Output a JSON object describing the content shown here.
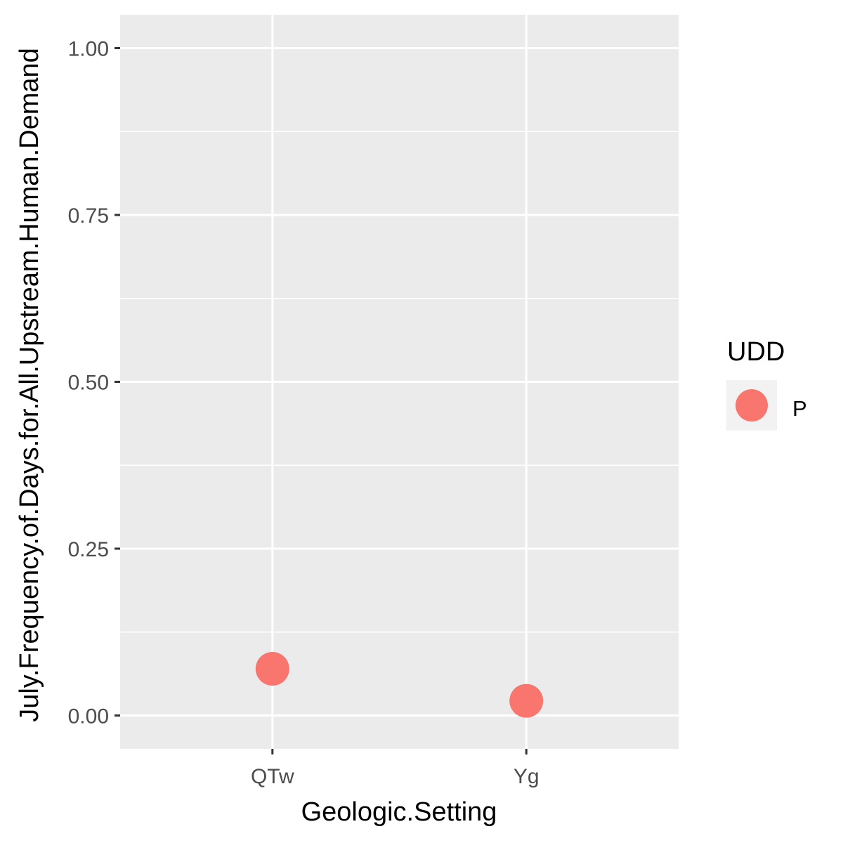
{
  "chart_data": {
    "type": "scatter",
    "xlabel": "Geologic.Setting",
    "ylabel": "July.Frequency.of.Days.for.All.Upstream.Human.Demand",
    "categories": [
      "QTw",
      "Yg"
    ],
    "ylim": [
      -0.05,
      1.05
    ],
    "y_ticks": [
      0.0,
      0.25,
      0.5,
      0.75,
      1.0
    ],
    "y_tick_labels": [
      "0.00",
      "0.25",
      "0.50",
      "0.75",
      "1.00"
    ],
    "grid": true,
    "legend": {
      "title": "UDD",
      "placement": "right",
      "entries": [
        {
          "label": "P",
          "color": "#F8766D"
        }
      ]
    },
    "series": [
      {
        "name": "P",
        "color": "#F8766D",
        "points": [
          {
            "x": "QTw",
            "y": 0.07
          },
          {
            "x": "Yg",
            "y": 0.022
          }
        ]
      }
    ]
  },
  "colors": {
    "panel_background": "#EBEBEB",
    "grid": "#FFFFFF",
    "tick_text": "#4D4D4D",
    "tick_mark": "#333333",
    "legend_key_background": "#F2F2F2"
  }
}
